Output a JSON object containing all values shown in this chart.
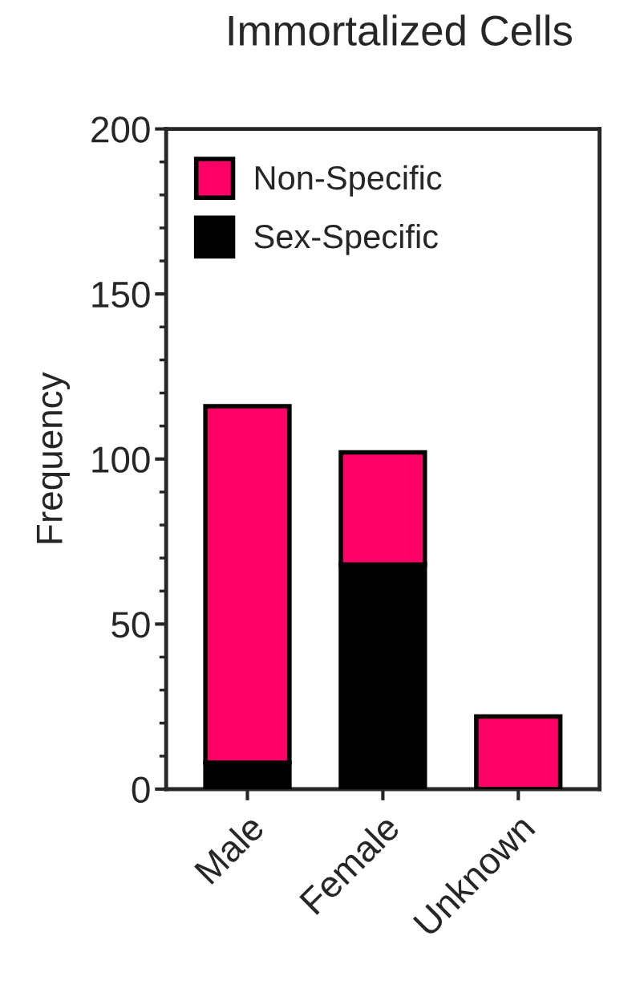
{
  "chart_data": {
    "type": "bar",
    "title": "Immortalized Cells",
    "ylabel": "Frequency",
    "categories": [
      "Male",
      "Female",
      "Unknown"
    ],
    "stacked": true,
    "series": [
      {
        "name": "Sex-Specific",
        "color": "#000000",
        "values": [
          8,
          68,
          0
        ]
      },
      {
        "name": "Non-Specific",
        "color": "#ff0066",
        "values": [
          108,
          34,
          22
        ]
      }
    ],
    "ylim": [
      0,
      200
    ],
    "yticks": [
      0,
      50,
      100,
      150,
      200
    ],
    "grid": false,
    "legend": "top left"
  }
}
